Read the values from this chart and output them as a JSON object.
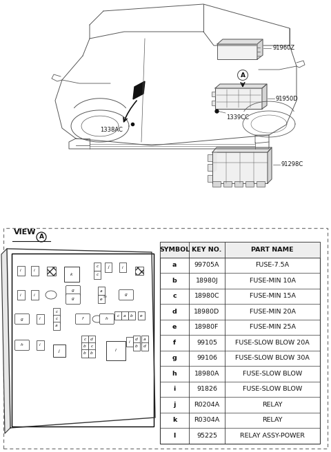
{
  "bg_color": "#ffffff",
  "line_color": "#555555",
  "table_headers": [
    "SYMBOL",
    "KEY NO.",
    "PART NAME"
  ],
  "table_rows": [
    [
      "a",
      "99705A",
      "FUSE-7.5A"
    ],
    [
      "b",
      "18980J",
      "FUSE-MIN 10A"
    ],
    [
      "c",
      "18980C",
      "FUSE-MIN 15A"
    ],
    [
      "d",
      "18980D",
      "FUSE-MIN 20A"
    ],
    [
      "e",
      "18980F",
      "FUSE-MIN 25A"
    ],
    [
      "f",
      "99105",
      "FUSE-SLOW BLOW 20A"
    ],
    [
      "g",
      "99106",
      "FUSE-SLOW BLOW 30A"
    ],
    [
      "h",
      "18980A",
      "FUSE-SLOW BLOW"
    ],
    [
      "i",
      "91826",
      "FUSE-SLOW BLOW"
    ],
    [
      "j",
      "R0204A",
      "RELAY"
    ],
    [
      "k",
      "R0304A",
      "RELAY"
    ],
    [
      "l",
      "95225",
      "RELAY ASSY-POWER"
    ]
  ],
  "labels_91960Z": "91960Z",
  "labels_91950D": "91950D",
  "labels_1338AC": "1338AC",
  "labels_1339CC": "1339CC",
  "labels_91298C": "91298C",
  "view_label": "VIEW",
  "font_size_table": 6.8,
  "font_size_label": 6.0
}
